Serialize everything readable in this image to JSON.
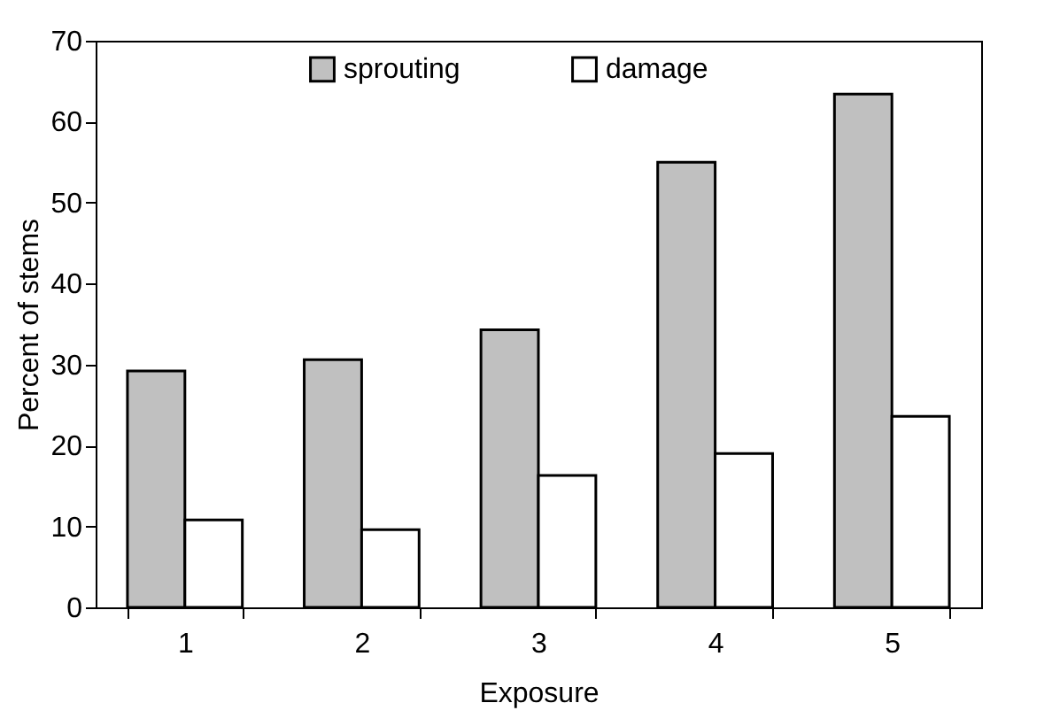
{
  "chart_data": {
    "type": "bar",
    "xlabel": "Exposure",
    "ylabel": "Percent of stems",
    "categories": [
      "1",
      "2",
      "3",
      "4",
      "5"
    ],
    "series": [
      {
        "name": "sprouting",
        "color": "#c0c0c0",
        "values": [
          29.2,
          30.6,
          34.3,
          55.0,
          63.4
        ]
      },
      {
        "name": "damage",
        "color": "#ffffff",
        "values": [
          10.8,
          9.6,
          16.3,
          19.0,
          23.6
        ]
      }
    ],
    "ylim": [
      0,
      70
    ],
    "yticks": [
      0,
      10,
      20,
      30,
      40,
      50,
      60,
      70
    ],
    "grid": false,
    "legend": "top"
  }
}
